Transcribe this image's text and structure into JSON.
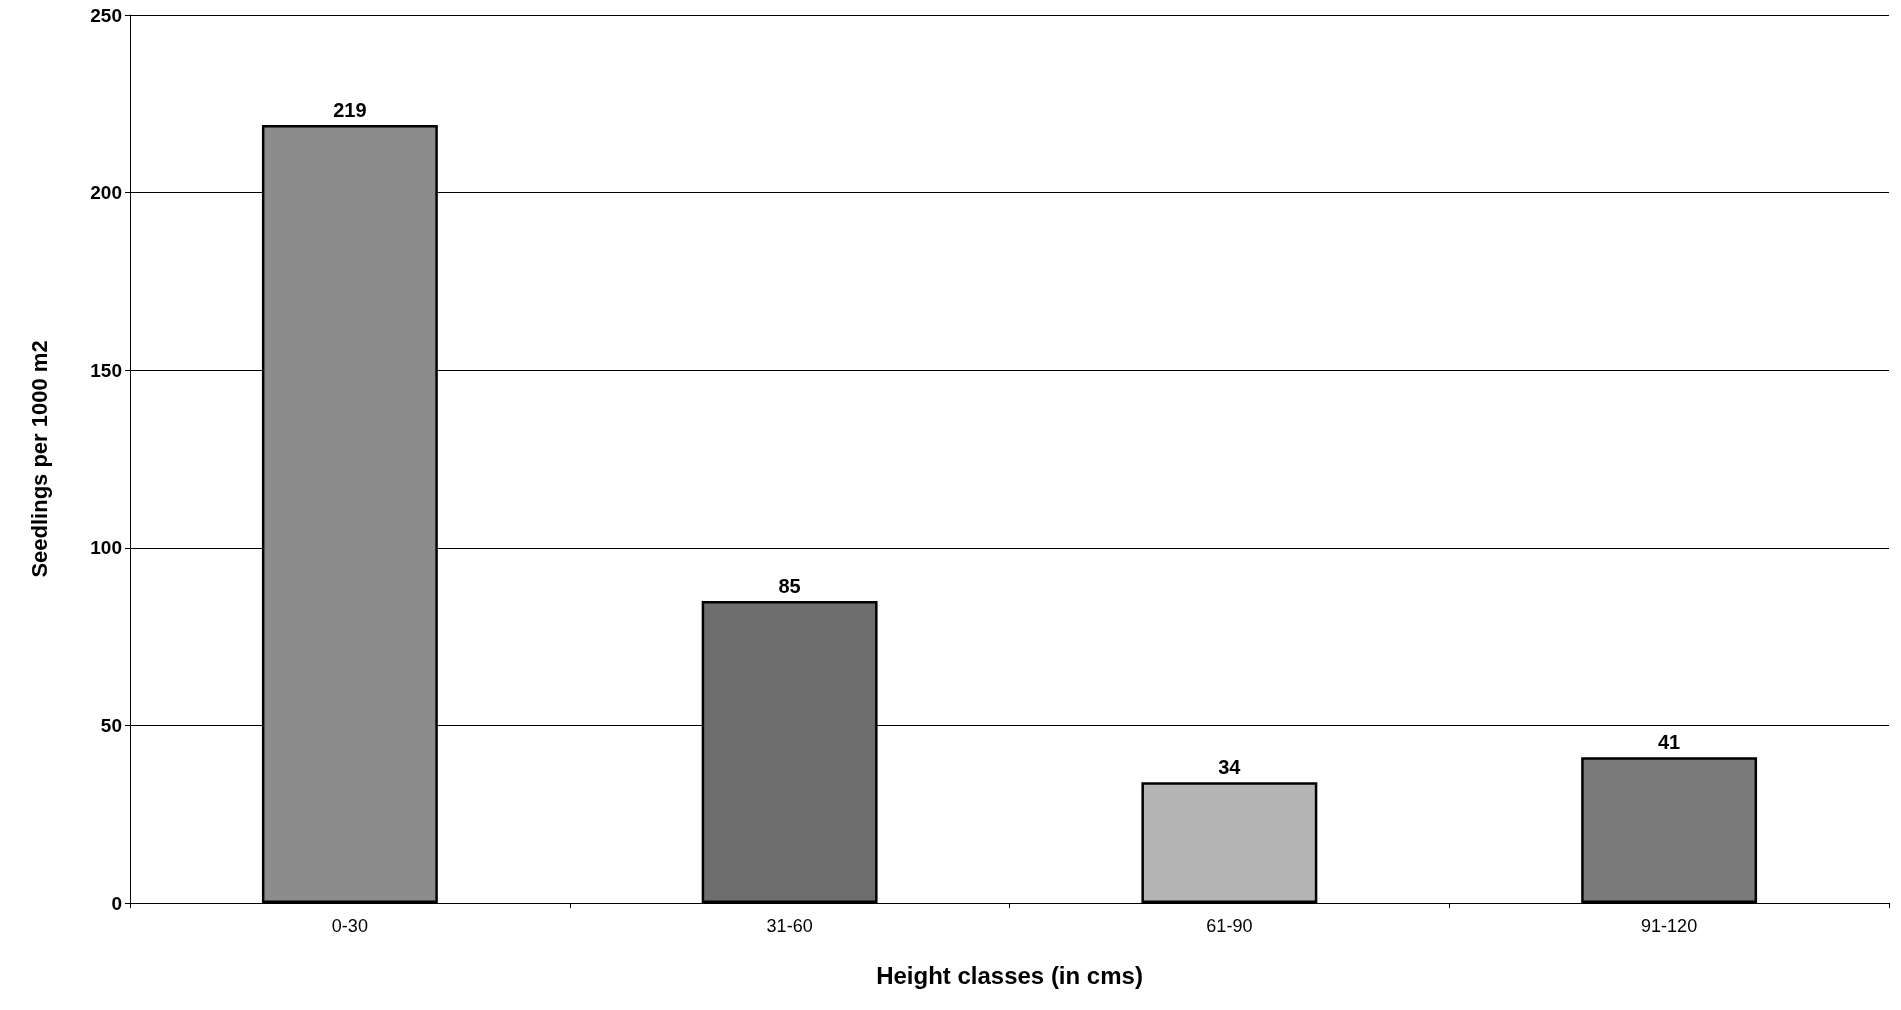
{
  "chart_data": {
    "type": "bar",
    "xlabel": "Height classes (in cms)",
    "ylabel": "Seedlings per 1000 m2",
    "categories": [
      "0-30",
      "31-60",
      "61-90",
      "91-120"
    ],
    "values": [
      219,
      85,
      34,
      41
    ],
    "colors": [
      "#8c8c8c",
      "#6e6e6e",
      "#b4b4b4",
      "#7a7a7a"
    ],
    "ylim": [
      0,
      250
    ],
    "yticks": [
      0,
      50,
      100,
      150,
      200,
      250
    ],
    "grid": "y",
    "data_labels": true
  }
}
